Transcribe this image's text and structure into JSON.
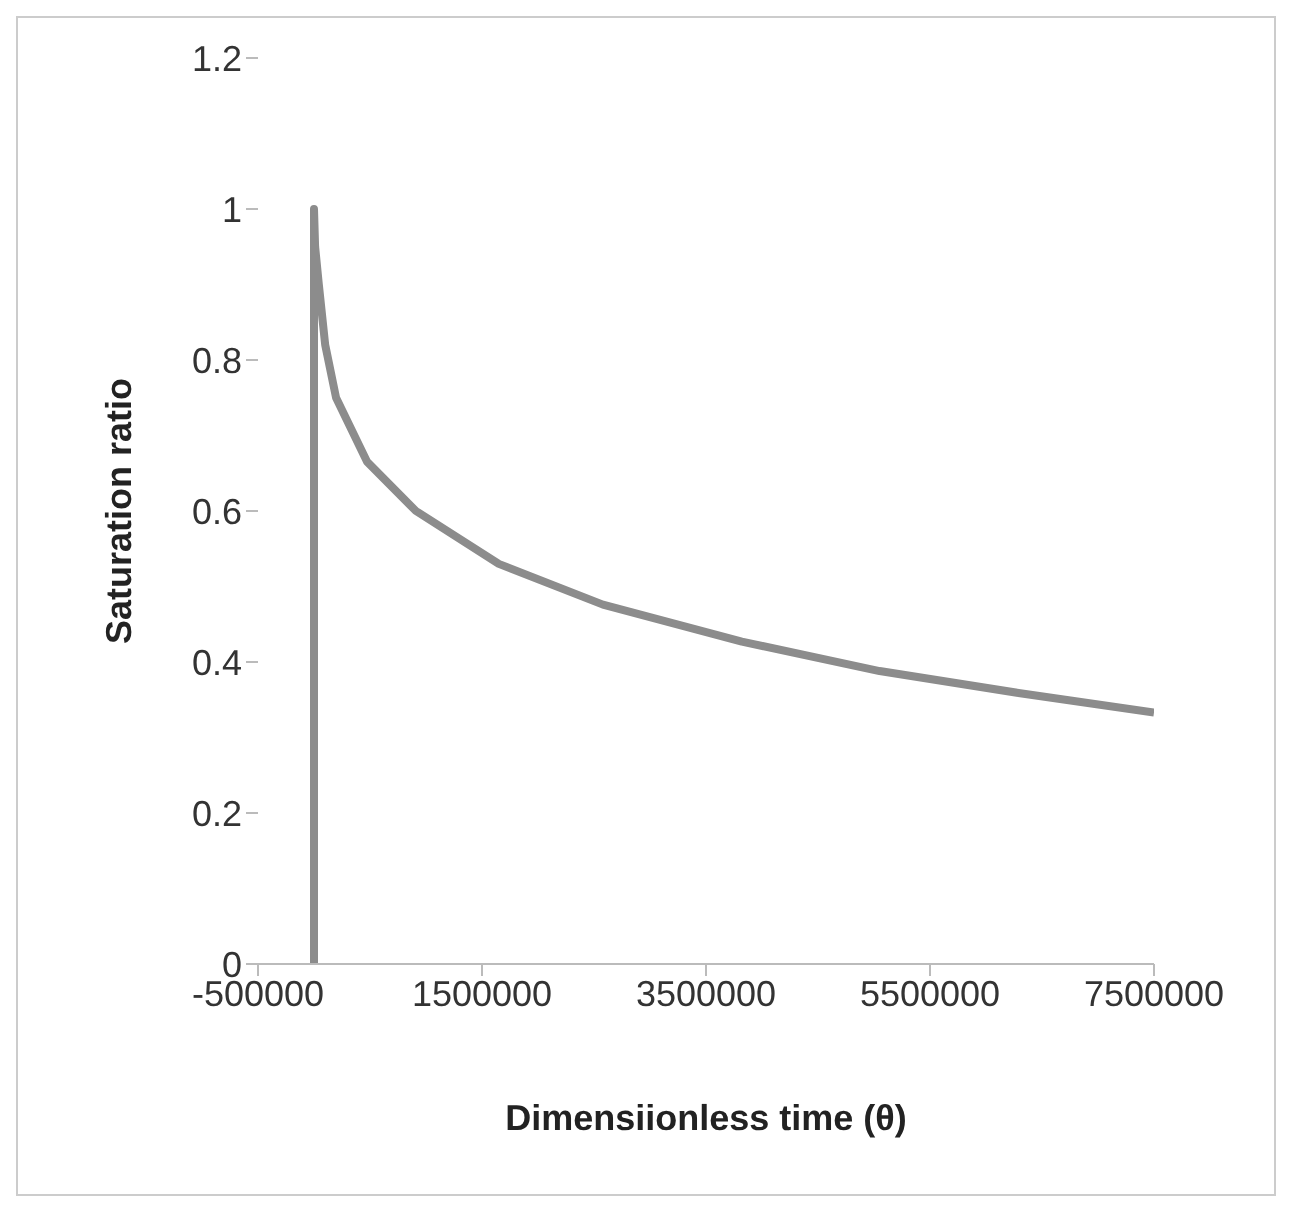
{
  "chart_data": {
    "type": "line",
    "xlabel": "Dimensiionless time (θ)",
    "ylabel": "Saturation ratio",
    "x": [
      0,
      0,
      10000,
      43000,
      100000,
      197000,
      475000,
      910000,
      1650000,
      2580000,
      3820000,
      5050000,
      6290000,
      7500000
    ],
    "series": [
      {
        "color": "#8c8c8c",
        "values": [
          0,
          1,
          0.95,
          0.9,
          0.82,
          0.75,
          0.665,
          0.6,
          0.53,
          0.476,
          0.427,
          0.388,
          0.359,
          0.333
        ]
      }
    ],
    "xlim": [
      -500000,
      7500000
    ],
    "xticks": [
      -500000,
      1500000,
      3500000,
      5500000,
      7500000
    ],
    "ylim": [
      0,
      1.2
    ],
    "yticks": [
      0,
      0.2,
      0.4,
      0.6,
      0.8,
      1,
      1.2
    ],
    "grid": false,
    "legend": false,
    "marker": "none",
    "line_style": "solid"
  }
}
